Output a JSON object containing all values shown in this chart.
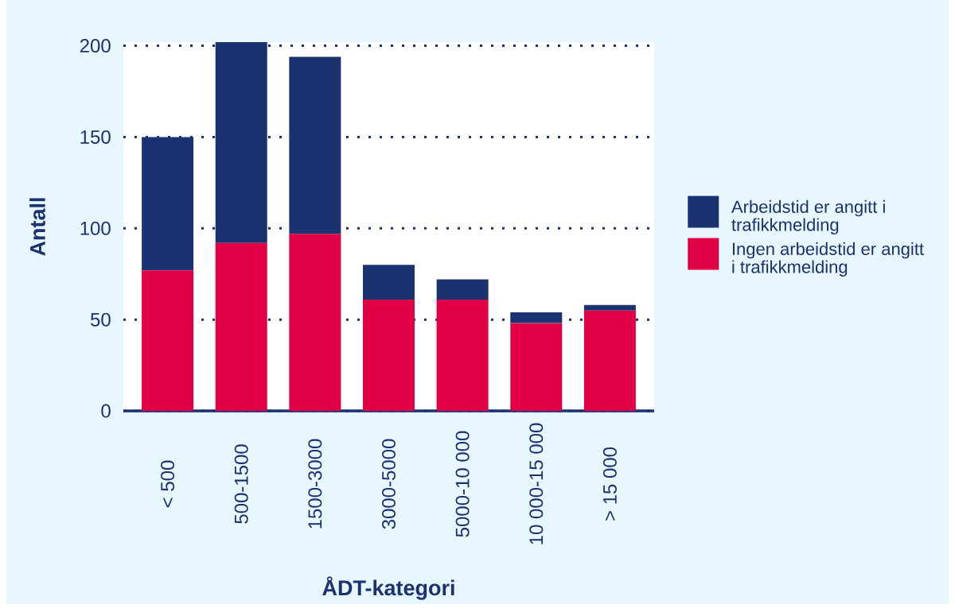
{
  "chart_data": {
    "type": "bar",
    "stacked": true,
    "xlabel": "ÅDT-kategori",
    "ylabel": "Antall",
    "categories": [
      "< 500",
      "500-1500",
      "1500-3000",
      "3000-5000",
      "5000-10 000",
      "10 000-15 000",
      "> 15 000"
    ],
    "series": [
      {
        "name": "Ingen arbeidstid er angitt i trafikkmelding",
        "color": "#e10046",
        "values": [
          77,
          92,
          97,
          61,
          61,
          48,
          55
        ]
      },
      {
        "name": "Arbeidstid er angitt i trafikkmelding",
        "color": "#1a3270",
        "values": [
          73,
          110,
          97,
          19,
          11,
          6,
          3
        ]
      }
    ],
    "ylim": [
      0,
      202
    ],
    "yticks": [
      0,
      50,
      100,
      150,
      200
    ],
    "grid": "y",
    "legend": "right"
  }
}
